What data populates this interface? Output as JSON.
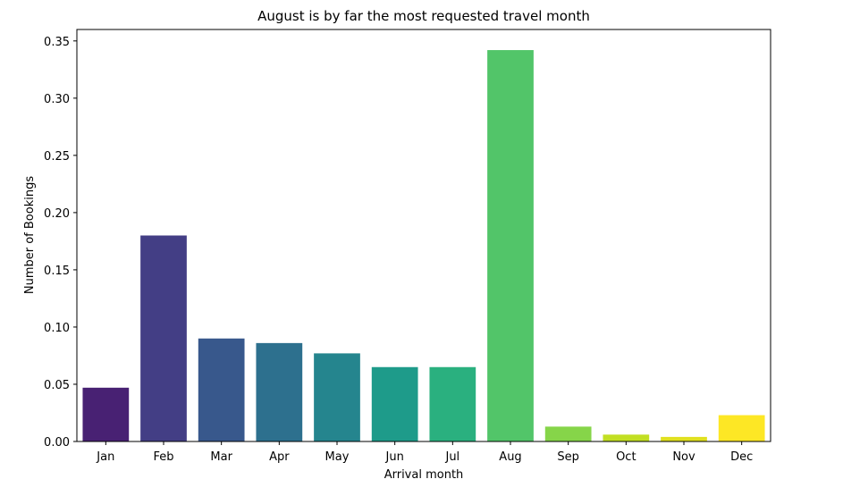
{
  "chart_data": {
    "type": "bar",
    "title": "August is by far the most requested travel month",
    "xlabel": "Arrival month",
    "ylabel": "Number of Bookings",
    "categories": [
      "Jan",
      "Feb",
      "Mar",
      "Apr",
      "May",
      "Jun",
      "Jul",
      "Aug",
      "Sep",
      "Oct",
      "Nov",
      "Dec"
    ],
    "values": [
      0.047,
      0.18,
      0.09,
      0.086,
      0.077,
      0.065,
      0.065,
      0.342,
      0.013,
      0.006,
      0.004,
      0.023
    ],
    "colors": [
      "#482173",
      "#433e85",
      "#38588c",
      "#2d708e",
      "#25858e",
      "#1e9b8a",
      "#2ab07f",
      "#52c569",
      "#86d549",
      "#c2df23",
      "#e0e01f",
      "#fde725"
    ],
    "ylim": [
      0,
      0.36
    ],
    "yticks": [
      "0.00",
      "0.05",
      "0.10",
      "0.15",
      "0.20",
      "0.25",
      "0.30",
      "0.35"
    ],
    "grid": false,
    "legend": "none"
  }
}
